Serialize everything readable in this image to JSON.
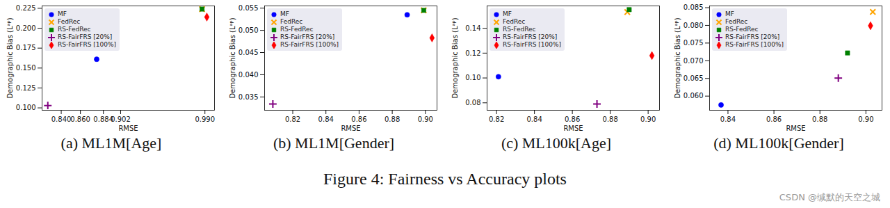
{
  "chart_data": [
    {
      "type": "scatter",
      "title": "(a) ML1M[Age]",
      "x_label": "RMSE",
      "y_label": "Demographic Bias (Lᵃᵖ)",
      "xlim": [
        0.82,
        1.0
      ],
      "xticks": [
        {
          "value": 0.84,
          "label": "0.840"
        },
        {
          "value": 0.86,
          "label": "0.860"
        },
        0.884,
        0.902,
        {
          "value": 0.99,
          "label": "0.990"
        }
      ],
      "ylim": [
        0.097,
        0.228
      ],
      "yticks": [
        {
          "value": 0.1,
          "label": "0.100"
        },
        0.125,
        {
          "value": 0.15,
          "label": "0.150"
        },
        0.175,
        {
          "value": 0.2,
          "label": "0.200"
        },
        0.225
      ],
      "grid": false,
      "legend": "upper left",
      "series": [
        {
          "name": "MF",
          "color": "#0000ff",
          "marker": "circle",
          "x": [
            0.877
          ],
          "values": [
            0.161
          ]
        },
        {
          "name": "FedRec",
          "color": "#ffa500",
          "marker": "times",
          "x": [
            0.987
          ],
          "values": [
            0.224
          ]
        },
        {
          "name": "RS-FedRec",
          "color": "#008000",
          "marker": "square",
          "x": [
            0.987
          ],
          "values": [
            0.224
          ]
        },
        {
          "name": "RS-FairFRS [20%]",
          "color": "#800080",
          "marker": "plus",
          "x": [
            0.826
          ],
          "values": [
            0.103
          ]
        },
        {
          "name": "RS-FairFRS [100%]",
          "color": "#ff0000",
          "marker": "diamond",
          "x": [
            0.992
          ],
          "values": [
            0.214
          ]
        }
      ]
    },
    {
      "type": "scatter",
      "title": "(b) ML1M[Gender]",
      "x_label": "RMSE",
      "y_label": "Demographic Bias (Lᵃᵖ)",
      "xlim": [
        0.803,
        0.907
      ],
      "xticks": [
        0.82,
        0.84,
        0.86,
        0.88,
        {
          "value": 0.9,
          "label": "0.90"
        }
      ],
      "ylim": [
        0.032,
        0.0555
      ],
      "yticks": [
        0.035,
        {
          "value": 0.04,
          "label": "0.040"
        },
        0.045,
        {
          "value": 0.05,
          "label": "0.050"
        },
        0.055
      ],
      "grid": false,
      "legend": "upper left",
      "series": [
        {
          "name": "MF",
          "color": "#0000ff",
          "marker": "circle",
          "x": [
            0.889
          ],
          "values": [
            0.0535
          ]
        },
        {
          "name": "FedRec",
          "color": "#ffa500",
          "marker": "times",
          "x": [
            0.899
          ],
          "values": [
            0.0545
          ]
        },
        {
          "name": "RS-FedRec",
          "color": "#008000",
          "marker": "square",
          "x": [
            0.899
          ],
          "values": [
            0.0545
          ]
        },
        {
          "name": "RS-FairFRS [20%]",
          "color": "#800080",
          "marker": "plus",
          "x": [
            0.808
          ],
          "values": [
            0.0334
          ]
        },
        {
          "name": "RS-FairFRS [100%]",
          "color": "#ff0000",
          "marker": "diamond",
          "x": [
            0.904
          ],
          "values": [
            0.0483
          ]
        }
      ]
    },
    {
      "type": "scatter",
      "title": "(c) ML100k[Age]",
      "x_label": "RMSE",
      "y_label": "Demographic Bias (Lᵃᵖ)",
      "xlim": [
        0.815,
        0.906
      ],
      "xticks": [
        0.82,
        0.84,
        0.86,
        0.88,
        {
          "value": 0.9,
          "label": "0.90"
        }
      ],
      "ylim": [
        0.074,
        0.158
      ],
      "yticks": [
        0.08,
        {
          "value": 0.1,
          "label": "0.10"
        },
        0.12,
        0.14
      ],
      "grid": false,
      "legend": "upper left",
      "series": [
        {
          "name": "MF",
          "color": "#0000ff",
          "marker": "circle",
          "x": [
            0.821
          ],
          "values": [
            0.101
          ]
        },
        {
          "name": "FedRec",
          "color": "#ffa500",
          "marker": "times",
          "x": [
            0.889
          ],
          "values": [
            0.153
          ]
        },
        {
          "name": "RS-FedRec",
          "color": "#008000",
          "marker": "square",
          "x": [
            0.89
          ],
          "values": [
            0.155
          ]
        },
        {
          "name": "RS-FairFRS [20%]",
          "color": "#800080",
          "marker": "plus",
          "x": [
            0.873
          ],
          "values": [
            0.079
          ]
        },
        {
          "name": "RS-FairFRS [100%]",
          "color": "#ff0000",
          "marker": "diamond",
          "x": [
            0.902
          ],
          "values": [
            0.118
          ]
        }
      ]
    },
    {
      "type": "scatter",
      "title": "(d) ML100k[Gender]",
      "x_label": "RMSE",
      "y_label": "Demographic Bias (Lᵃᵖ)",
      "xlim": [
        0.832,
        0.907
      ],
      "xticks": [
        0.84,
        0.86,
        0.88,
        {
          "value": 0.9,
          "label": "0.90"
        }
      ],
      "ylim": [
        0.056,
        0.0855
      ],
      "yticks": [
        {
          "value": 0.06,
          "label": "0.060"
        },
        0.065,
        {
          "value": 0.07,
          "label": "0.070"
        },
        0.075,
        {
          "value": 0.08,
          "label": "0.080"
        },
        0.085
      ],
      "grid": false,
      "legend": "upper left",
      "series": [
        {
          "name": "MF",
          "color": "#0000ff",
          "marker": "circle",
          "x": [
            0.837
          ],
          "values": [
            0.0575
          ]
        },
        {
          "name": "FedRec",
          "color": "#ffa500",
          "marker": "times",
          "x": [
            0.903
          ],
          "values": [
            0.0838
          ]
        },
        {
          "name": "RS-FedRec",
          "color": "#008000",
          "marker": "square",
          "x": [
            0.892
          ],
          "values": [
            0.0722
          ]
        },
        {
          "name": "RS-FairFRS [20%]",
          "color": "#800080",
          "marker": "plus",
          "x": [
            0.888
          ],
          "values": [
            0.0651
          ]
        },
        {
          "name": "RS-FairFRS [100%]",
          "color": "#ff0000",
          "marker": "diamond",
          "x": [
            0.902
          ],
          "values": [
            0.0799
          ]
        }
      ]
    }
  ],
  "caption": "Figure 4: Fairness vs Accuracy plots",
  "watermark": "CSDN @缄默的天空之城"
}
